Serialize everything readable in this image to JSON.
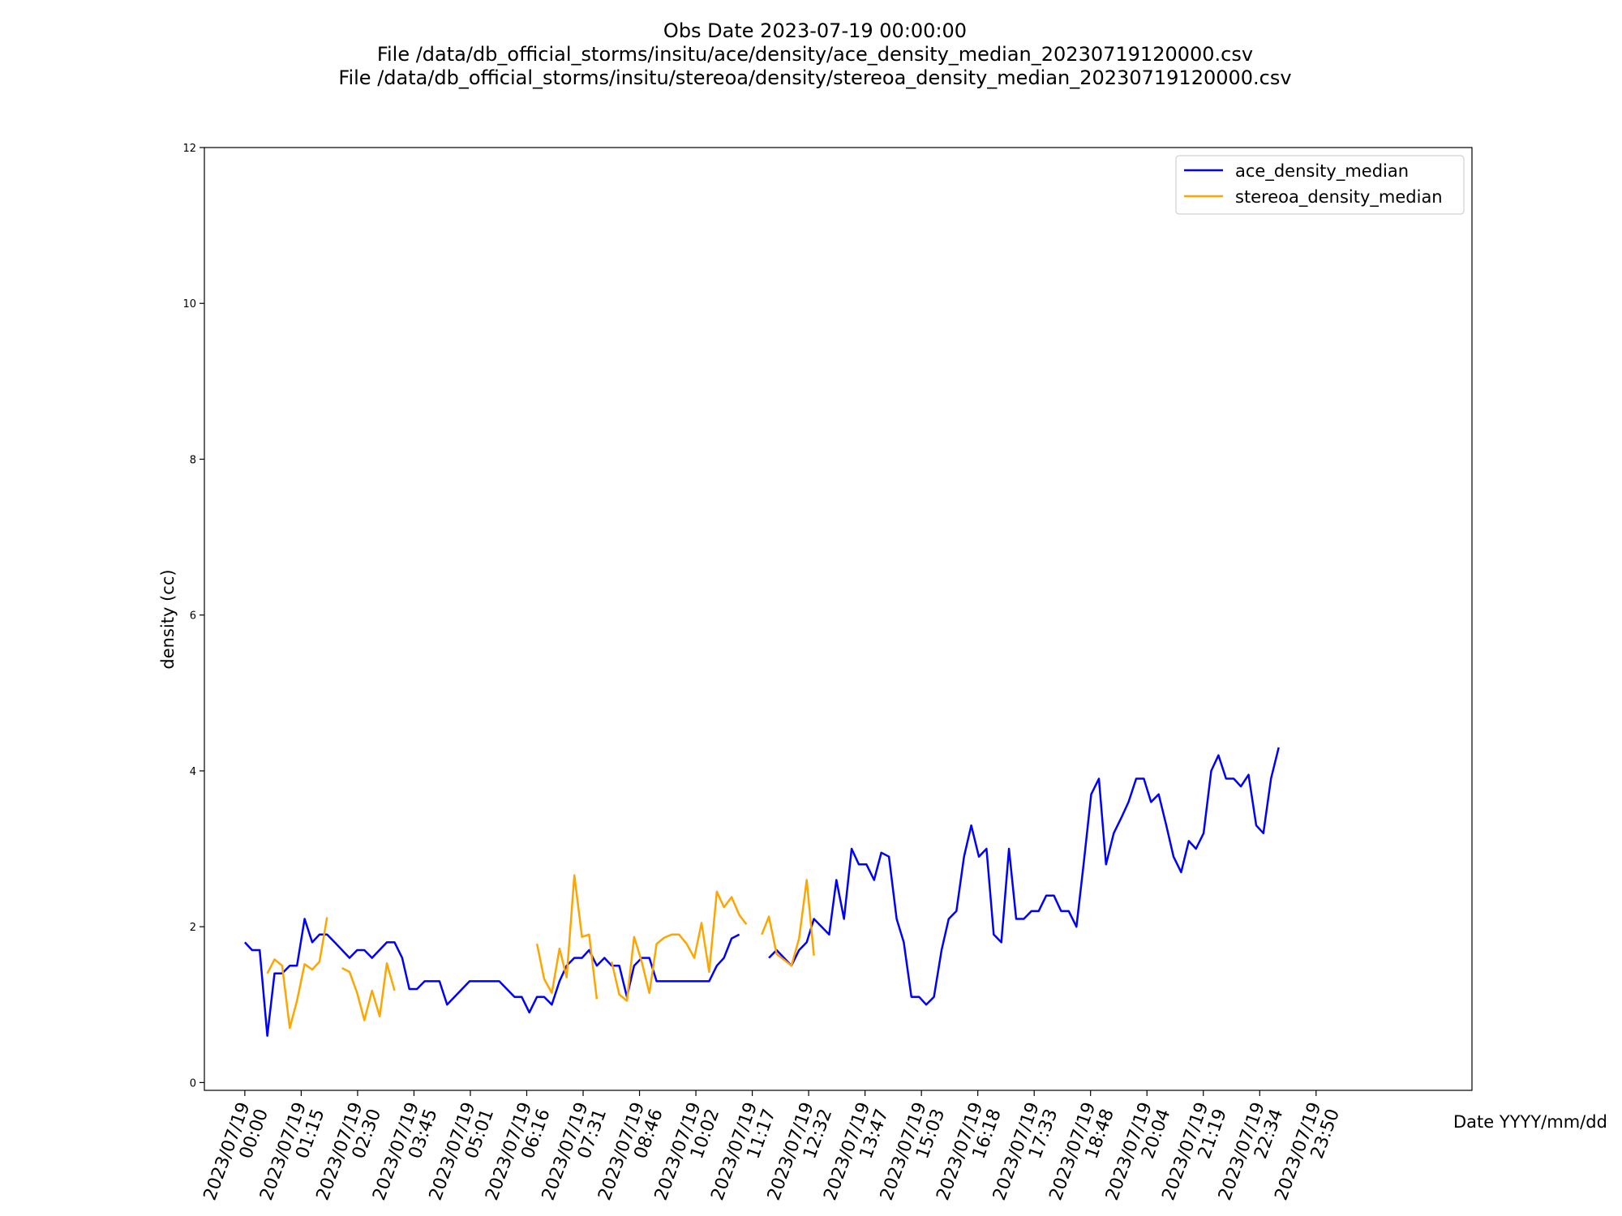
{
  "title": {
    "line1": "Obs Date 2023-07-19 00:00:00",
    "line2": "File /data/db_official_storms/insitu/ace/density/ace_density_median_20230719120000.csv",
    "line3": "File /data/db_official_storms/insitu/stereoa/density/stereoa_density_median_20230719120000.csv"
  },
  "chart_data": {
    "type": "line",
    "xlabel": "Date YYYY/mm/dd",
    "ylabel": "density (cc)",
    "x_unit": "hours since 2023/07/19 00:00",
    "xlim": [
      -0.9,
      27.3
    ],
    "ylim": [
      -0.1,
      12
    ],
    "yticks": [
      0,
      2,
      4,
      6,
      8,
      10,
      12
    ],
    "xticks": [
      {
        "line1": "2023/07/19",
        "line2": "00:00"
      },
      {
        "line1": "2023/07/19",
        "line2": "01:15"
      },
      {
        "line1": "2023/07/19",
        "line2": "02:30"
      },
      {
        "line1": "2023/07/19",
        "line2": "03:45"
      },
      {
        "line1": "2023/07/19",
        "line2": "05:01"
      },
      {
        "line1": "2023/07/19",
        "line2": "06:16"
      },
      {
        "line1": "2023/07/19",
        "line2": "07:31"
      },
      {
        "line1": "2023/07/19",
        "line2": "08:46"
      },
      {
        "line1": "2023/07/19",
        "line2": "10:02"
      },
      {
        "line1": "2023/07/19",
        "line2": "11:17"
      },
      {
        "line1": "2023/07/19",
        "line2": "12:32"
      },
      {
        "line1": "2023/07/19",
        "line2": "13:47"
      },
      {
        "line1": "2023/07/19",
        "line2": "15:03"
      },
      {
        "line1": "2023/07/19",
        "line2": "16:18"
      },
      {
        "line1": "2023/07/19",
        "line2": "17:33"
      },
      {
        "line1": "2023/07/19",
        "line2": "18:48"
      },
      {
        "line1": "2023/07/19",
        "line2": "20:04"
      },
      {
        "line1": "2023/07/19",
        "line2": "21:19"
      },
      {
        "line1": "2023/07/19",
        "line2": "22:34"
      },
      {
        "line1": "2023/07/19",
        "line2": "23:50"
      }
    ],
    "grid": false,
    "legend": "top-right",
    "series": [
      {
        "name": "ace_density_median",
        "color": "#0000ff",
        "segments": [
          [
            [
              0.0,
              1.8
            ],
            [
              0.16,
              1.7
            ],
            [
              0.33,
              1.7
            ],
            [
              0.5,
              0.6
            ],
            [
              0.66,
              1.4
            ],
            [
              0.83,
              1.4
            ],
            [
              1.0,
              1.5
            ],
            [
              1.16,
              1.5
            ],
            [
              1.33,
              2.1
            ],
            [
              1.5,
              1.8
            ],
            [
              1.66,
              1.9
            ],
            [
              1.83,
              1.9
            ],
            [
              2.0,
              1.8
            ],
            [
              2.33,
              1.6
            ],
            [
              2.5,
              1.7
            ],
            [
              2.66,
              1.7
            ],
            [
              2.83,
              1.6
            ],
            [
              3.16,
              1.8
            ],
            [
              3.33,
              1.8
            ],
            [
              3.5,
              1.6
            ],
            [
              3.66,
              1.2
            ],
            [
              3.83,
              1.2
            ],
            [
              4.0,
              1.3
            ],
            [
              4.33,
              1.3
            ],
            [
              4.5,
              1.0
            ],
            [
              5.0,
              1.3
            ],
            [
              5.66,
              1.3
            ],
            [
              6.0,
              1.1
            ],
            [
              6.16,
              1.1
            ],
            [
              6.33,
              0.9
            ],
            [
              6.5,
              1.1
            ],
            [
              6.66,
              1.1
            ],
            [
              6.83,
              1.0
            ],
            [
              7.0,
              1.3
            ],
            [
              7.16,
              1.5
            ],
            [
              7.33,
              1.6
            ],
            [
              7.5,
              1.6
            ],
            [
              7.66,
              1.7
            ],
            [
              7.83,
              1.5
            ],
            [
              8.0,
              1.6
            ],
            [
              8.16,
              1.5
            ],
            [
              8.33,
              1.5
            ],
            [
              8.5,
              1.1
            ],
            [
              8.66,
              1.5
            ],
            [
              8.83,
              1.6
            ],
            [
              9.0,
              1.6
            ],
            [
              9.16,
              1.3
            ],
            [
              10.33,
              1.3
            ],
            [
              10.5,
              1.5
            ],
            [
              10.66,
              1.6
            ],
            [
              10.83,
              1.85
            ],
            [
              11.0,
              1.9
            ]
          ],
          [
            [
              11.66,
              1.6
            ],
            [
              11.83,
              1.7
            ],
            [
              12.16,
              1.5
            ],
            [
              12.33,
              1.7
            ],
            [
              12.5,
              1.8
            ],
            [
              12.66,
              2.1
            ],
            [
              13.0,
              1.9
            ],
            [
              13.16,
              2.6
            ],
            [
              13.33,
              2.1
            ],
            [
              13.5,
              3.0
            ],
            [
              13.66,
              2.8
            ],
            [
              13.83,
              2.8
            ],
            [
              14.0,
              2.6
            ],
            [
              14.16,
              2.95
            ],
            [
              14.33,
              2.9
            ],
            [
              14.5,
              2.1
            ],
            [
              14.66,
              1.8
            ],
            [
              14.83,
              1.1
            ],
            [
              15.0,
              1.1
            ],
            [
              15.16,
              1.0
            ],
            [
              15.33,
              1.1
            ],
            [
              15.5,
              1.7
            ],
            [
              15.66,
              2.1
            ],
            [
              15.83,
              2.2
            ],
            [
              16.0,
              2.9
            ],
            [
              16.16,
              3.3
            ],
            [
              16.33,
              2.9
            ],
            [
              16.5,
              3.0
            ],
            [
              16.66,
              1.9
            ],
            [
              16.83,
              1.8
            ],
            [
              17.0,
              3.0
            ],
            [
              17.16,
              2.1
            ],
            [
              17.33,
              2.1
            ],
            [
              17.5,
              2.2
            ],
            [
              17.66,
              2.2
            ],
            [
              17.83,
              2.4
            ],
            [
              18.0,
              2.4
            ],
            [
              18.16,
              2.2
            ],
            [
              18.33,
              2.2
            ],
            [
              18.5,
              2.0
            ],
            [
              18.66,
              2.8
            ],
            [
              18.83,
              3.7
            ],
            [
              19.0,
              3.9
            ],
            [
              19.16,
              2.8
            ],
            [
              19.33,
              3.2
            ],
            [
              19.5,
              3.4
            ],
            [
              19.66,
              3.6
            ],
            [
              19.83,
              3.9
            ],
            [
              20.0,
              3.9
            ],
            [
              20.16,
              3.6
            ],
            [
              20.33,
              3.7
            ],
            [
              20.5,
              3.3
            ],
            [
              20.66,
              2.9
            ],
            [
              20.83,
              2.7
            ],
            [
              21.0,
              3.1
            ],
            [
              21.16,
              3.0
            ],
            [
              21.33,
              3.2
            ],
            [
              21.5,
              4.0
            ],
            [
              21.66,
              4.2
            ],
            [
              21.83,
              3.9
            ],
            [
              22.0,
              3.9
            ],
            [
              22.16,
              3.8
            ],
            [
              22.33,
              3.95
            ],
            [
              22.5,
              3.3
            ],
            [
              22.66,
              3.2
            ],
            [
              22.83,
              3.9
            ],
            [
              23.0,
              4.3
            ]
          ]
        ]
      },
      {
        "name": "stereoa_density_median",
        "color": "#ffa500",
        "segments": [
          [
            [
              0.5,
              1.4
            ],
            [
              0.66,
              1.58
            ],
            [
              0.83,
              1.5
            ],
            [
              1.0,
              0.7
            ],
            [
              1.16,
              1.05
            ],
            [
              1.33,
              1.52
            ],
            [
              1.5,
              1.45
            ],
            [
              1.66,
              1.55
            ],
            [
              1.83,
              2.12
            ]
          ],
          [
            [
              2.16,
              1.47
            ],
            [
              2.33,
              1.42
            ],
            [
              2.5,
              1.15
            ],
            [
              2.66,
              0.8
            ],
            [
              2.83,
              1.18
            ],
            [
              3.0,
              0.85
            ],
            [
              3.16,
              1.53
            ],
            [
              3.33,
              1.18
            ]
          ],
          [
            [
              6.5,
              1.78
            ],
            [
              6.66,
              1.33
            ],
            [
              6.83,
              1.15
            ],
            [
              7.0,
              1.72
            ],
            [
              7.16,
              1.35
            ],
            [
              7.33,
              2.66
            ],
            [
              7.5,
              1.87
            ],
            [
              7.66,
              1.9
            ],
            [
              7.83,
              1.07
            ]
          ],
          [
            [
              8.16,
              1.55
            ],
            [
              8.33,
              1.13
            ],
            [
              8.5,
              1.05
            ],
            [
              8.66,
              1.87
            ],
            [
              8.83,
              1.55
            ],
            [
              9.0,
              1.15
            ],
            [
              9.16,
              1.78
            ],
            [
              9.33,
              1.86
            ],
            [
              9.5,
              1.9
            ],
            [
              9.66,
              1.9
            ],
            [
              9.83,
              1.78
            ],
            [
              10.0,
              1.6
            ],
            [
              10.16,
              2.05
            ],
            [
              10.33,
              1.42
            ],
            [
              10.5,
              2.45
            ],
            [
              10.66,
              2.25
            ],
            [
              10.83,
              2.38
            ],
            [
              11.0,
              2.15
            ],
            [
              11.16,
              2.03
            ]
          ],
          [
            [
              11.5,
              1.9
            ],
            [
              11.66,
              2.13
            ],
            [
              11.83,
              1.65
            ],
            [
              12.16,
              1.5
            ],
            [
              12.33,
              1.85
            ],
            [
              12.5,
              2.6
            ],
            [
              12.66,
              1.63
            ]
          ]
        ]
      }
    ]
  }
}
